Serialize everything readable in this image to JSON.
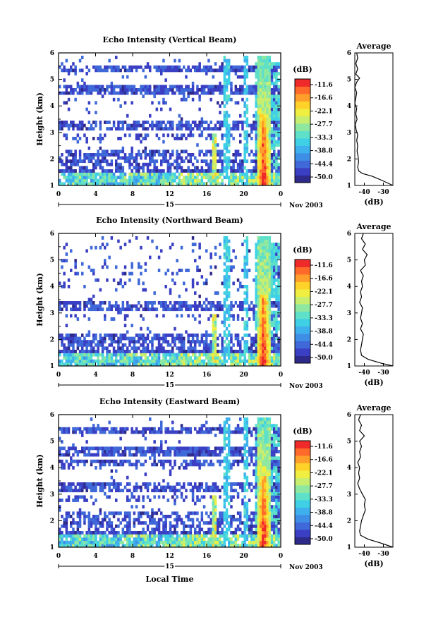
{
  "figure": {
    "xlabel": "Local Time",
    "date_label": "Nov 2003",
    "day_label": "15",
    "colorbar_unit": "(dB)",
    "colorbar_ticks": [
      "-11.6",
      "-16.6",
      "-22.1",
      "-27.7",
      "-33.3",
      "-38.8",
      "-44.4",
      "-50.0"
    ],
    "colorbar_colors": [
      "#2e2a8a",
      "#3a3fc4",
      "#3f68d8",
      "#3f8ee6",
      "#3fb0ee",
      "#3fd0e6",
      "#5fe0c8",
      "#8fe8a0",
      "#c8ee70",
      "#f0ee40",
      "#ffd22a",
      "#ff9e2a",
      "#ff6a2a",
      "#ee2a2a"
    ],
    "profile_title": "Average",
    "profile_xlabel": "(dB)",
    "profile_xticks": [
      "-40",
      "-30"
    ]
  },
  "chart_data": [
    {
      "type": "heatmap",
      "title": "Echo Intensity (Vertical Beam)",
      "ylabel": "Height (km)",
      "x_ticks": [
        "0",
        "4",
        "8",
        "12",
        "16",
        "20",
        "0"
      ],
      "y_ticks": [
        "1",
        "2",
        "3",
        "4",
        "5",
        "6"
      ],
      "xlim": [
        0,
        24
      ],
      "ylim": [
        1,
        6
      ],
      "clim": [
        -50.0,
        -11.6
      ],
      "average_profile": {
        "xlim": [
          -45,
          -25
        ],
        "height_km": [
          1.0,
          1.2,
          1.35,
          1.45,
          1.55,
          1.7,
          1.9,
          2.1,
          2.3,
          2.5,
          2.7,
          2.9,
          3.1,
          3.3,
          3.5,
          3.7,
          3.9,
          4.1,
          4.3,
          4.5,
          4.7,
          4.9,
          5.05,
          5.2,
          5.4,
          5.6,
          5.8,
          6.0
        ],
        "db": [
          -25.0,
          -31.0,
          -36.0,
          -41.0,
          -43.0,
          -43.5,
          -43.0,
          -43.3,
          -43.8,
          -43.5,
          -44.0,
          -43.5,
          -44.3,
          -44.8,
          -43.8,
          -44.5,
          -44.0,
          -45.0,
          -44.5,
          -44.0,
          -45.0,
          -44.0,
          -42.5,
          -44.5,
          -43.5,
          -44.5,
          -43.5,
          -44.0
        ]
      }
    },
    {
      "type": "heatmap",
      "title": "Echo Intensity (Northward Beam)",
      "ylabel": "Height (km)",
      "x_ticks": [
        "0",
        "4",
        "8",
        "12",
        "16",
        "20",
        "0"
      ],
      "y_ticks": [
        "1",
        "2",
        "3",
        "4",
        "5",
        "6"
      ],
      "xlim": [
        0,
        24
      ],
      "ylim": [
        1,
        6
      ],
      "clim": [
        -50.0,
        -11.6
      ],
      "average_profile": {
        "xlim": [
          -45,
          -25
        ],
        "height_km": [
          1.0,
          1.1,
          1.25,
          1.4,
          1.6,
          1.8,
          2.0,
          2.2,
          2.4,
          2.6,
          2.8,
          3.0,
          3.2,
          3.4,
          3.6,
          3.8,
          4.0,
          4.2,
          4.4,
          4.6,
          4.8,
          5.0,
          5.2,
          5.4,
          5.6,
          5.8,
          6.0
        ],
        "db": [
          -25.0,
          -31.0,
          -38.0,
          -41.5,
          -42.0,
          -41.5,
          -41.0,
          -40.5,
          -42.0,
          -41.0,
          -42.0,
          -41.5,
          -41.0,
          -42.5,
          -41.5,
          -42.0,
          -41.0,
          -41.5,
          -40.5,
          -42.0,
          -39.5,
          -40.0,
          -38.5,
          -41.0,
          -39.5,
          -41.5,
          -40.5
        ]
      }
    },
    {
      "type": "heatmap",
      "title": "Echo Intensity (Eastward Beam)",
      "ylabel": "Height (km)",
      "x_ticks": [
        "0",
        "4",
        "8",
        "12",
        "16",
        "20",
        "0"
      ],
      "y_ticks": [
        "1",
        "2",
        "3",
        "4",
        "5",
        "6"
      ],
      "xlim": [
        0,
        24
      ],
      "ylim": [
        1,
        6
      ],
      "clim": [
        -50.0,
        -11.6
      ],
      "average_profile": {
        "xlim": [
          -45,
          -25
        ],
        "height_km": [
          1.0,
          1.15,
          1.3,
          1.45,
          1.6,
          1.8,
          2.0,
          2.2,
          2.4,
          2.6,
          2.8,
          3.0,
          3.2,
          3.4,
          3.6,
          3.8,
          4.0,
          4.2,
          4.4,
          4.6,
          4.8,
          5.0,
          5.2,
          5.4,
          5.6,
          5.8,
          6.0
        ],
        "db": [
          -25.0,
          -31.0,
          -38.0,
          -42.0,
          -42.5,
          -42.0,
          -41.5,
          -40.5,
          -39.5,
          -40.0,
          -39.5,
          -41.0,
          -42.5,
          -43.5,
          -42.5,
          -43.0,
          -42.5,
          -43.5,
          -42.0,
          -42.5,
          -41.5,
          -42.5,
          -40.0,
          -42.5,
          -41.5,
          -43.0,
          -42.0
        ]
      }
    }
  ]
}
